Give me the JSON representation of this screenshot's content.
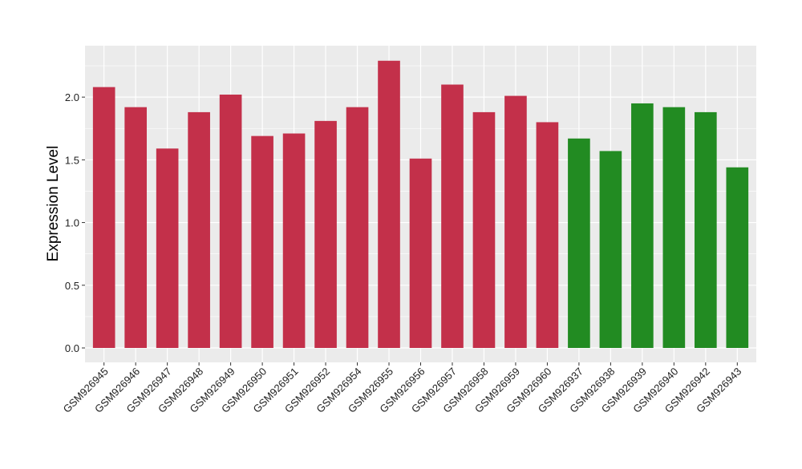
{
  "chart_data": {
    "type": "bar",
    "title": "",
    "xlabel": "",
    "ylabel": "Expression Level",
    "ylim": [
      -0.115,
      2.41
    ],
    "yticks": [
      0.0,
      0.5,
      1.0,
      1.5,
      2.0
    ],
    "ytick_labels": [
      "0.0",
      "0.5",
      "1.0",
      "1.5",
      "2.0"
    ],
    "grid": true,
    "legend": "none",
    "categories": [
      "GSM926945",
      "GSM926946",
      "GSM926947",
      "GSM926948",
      "GSM926949",
      "GSM926950",
      "GSM926951",
      "GSM926952",
      "GSM926954",
      "GSM926955",
      "GSM926956",
      "GSM926957",
      "GSM926958",
      "GSM926959",
      "GSM926960",
      "GSM926937",
      "GSM926938",
      "GSM926939",
      "GSM926940",
      "GSM926942",
      "GSM926943"
    ],
    "values": [
      2.08,
      1.92,
      1.59,
      1.88,
      2.02,
      1.69,
      1.71,
      1.81,
      1.92,
      2.29,
      1.51,
      2.1,
      1.88,
      2.01,
      1.8,
      1.67,
      1.57,
      1.95,
      1.92,
      1.88,
      1.44
    ],
    "groups": [
      "a",
      "a",
      "a",
      "a",
      "a",
      "a",
      "a",
      "a",
      "a",
      "a",
      "a",
      "a",
      "a",
      "a",
      "a",
      "b",
      "b",
      "b",
      "b",
      "b",
      "b"
    ],
    "colors": {
      "a": "#C3304A",
      "b": "#228B22",
      "panel": "#EBEBEB",
      "grid": "#FFFFFF"
    }
  }
}
